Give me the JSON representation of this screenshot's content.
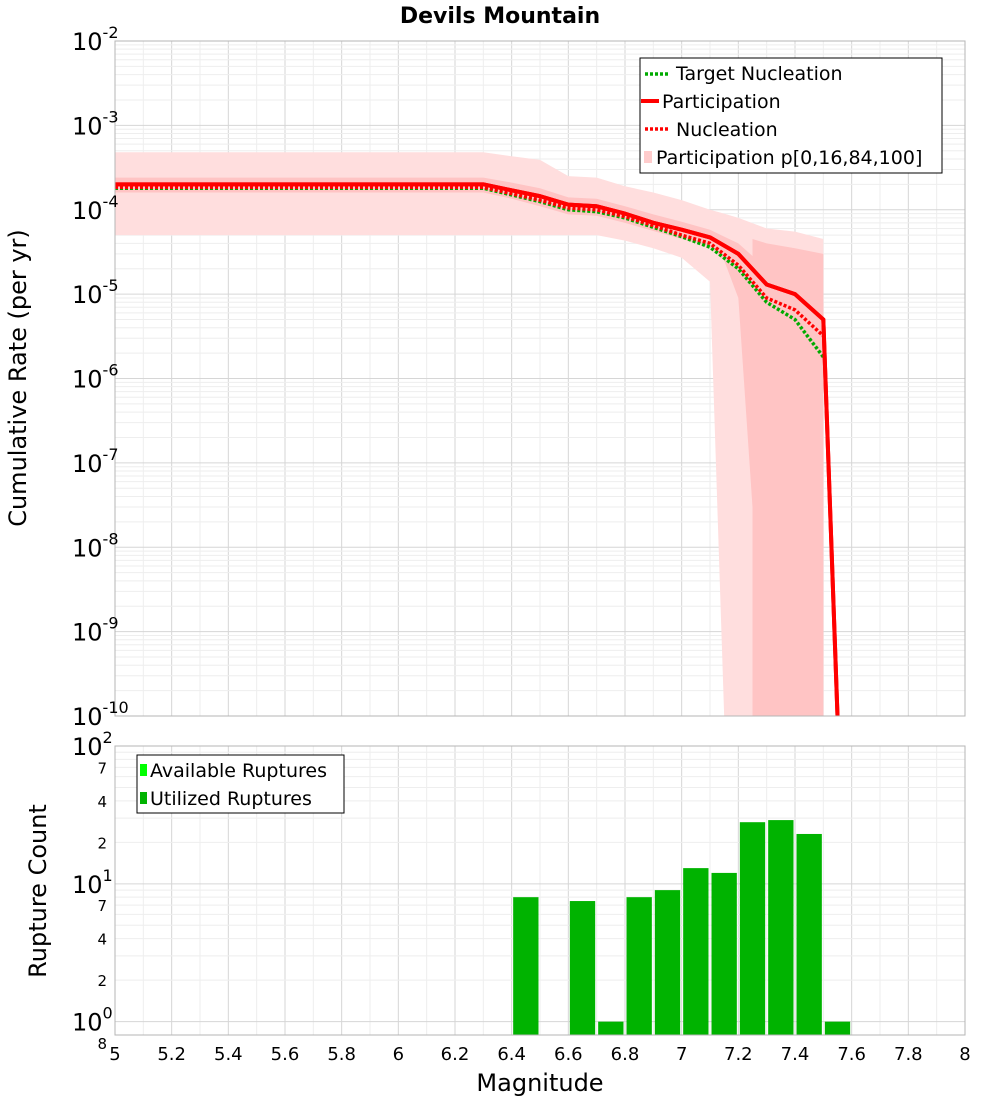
{
  "chart_data": [
    {
      "type": "line",
      "title": "Devils Mountain",
      "xlabel": "",
      "ylabel": "Cumulative Rate (per yr)",
      "xlim": [
        5,
        8
      ],
      "ylim": [
        1e-10,
        0.01
      ],
      "y_scale": "log",
      "grid": true,
      "legend_position": "top-right",
      "y_ticks": [
        {
          "base": "10",
          "exp": "-2"
        },
        {
          "base": "10",
          "exp": "-3"
        },
        {
          "base": "10",
          "exp": "-4"
        },
        {
          "base": "10",
          "exp": "-5"
        },
        {
          "base": "10",
          "exp": "-6"
        },
        {
          "base": "10",
          "exp": "-7"
        },
        {
          "base": "10",
          "exp": "-8"
        },
        {
          "base": "10",
          "exp": "-9"
        },
        {
          "base": "10",
          "exp": "-10"
        }
      ],
      "y_tick_values": [
        -2,
        -3,
        -4,
        -5,
        -6,
        -7,
        -8,
        -9,
        -10
      ],
      "x": [
        5.0,
        6.3,
        6.4,
        6.5,
        6.6,
        6.7,
        6.8,
        6.9,
        7.0,
        7.1,
        7.2,
        7.3,
        7.4,
        7.5
      ],
      "series": [
        {
          "name": "Target Nucleation",
          "color": "#00aa00",
          "style": "dotted",
          "x": [
            5.0,
            6.3,
            6.4,
            6.5,
            6.6,
            6.7,
            6.8,
            6.9,
            7.0,
            7.1,
            7.2,
            7.3,
            7.4,
            7.5
          ],
          "values": [
            0.00018,
            0.00018,
            0.00015,
            0.000125,
            0.0001,
            9.5e-05,
            8e-05,
            6.2e-05,
            4.8e-05,
            3.6e-05,
            2e-05,
            8e-06,
            5e-06,
            1.8e-06
          ]
        },
        {
          "name": "Participation",
          "color": "#ff0000",
          "style": "solid",
          "x": [
            5.0,
            6.3,
            6.4,
            6.5,
            6.6,
            6.7,
            6.8,
            6.9,
            7.0,
            7.1,
            7.2,
            7.3,
            7.4,
            7.5,
            7.55
          ],
          "values": [
            0.0002,
            0.0002,
            0.00017,
            0.000145,
            0.000115,
            0.00011,
            9e-05,
            7e-05,
            5.8e-05,
            4.7e-05,
            3e-05,
            1.3e-05,
            1e-05,
            5e-06,
            1e-10
          ]
        },
        {
          "name": "Nucleation",
          "color": "#ff0000",
          "style": "dotted",
          "x": [
            5.0,
            6.3,
            6.4,
            6.5,
            6.6,
            6.7,
            6.8,
            6.9,
            7.0,
            7.1,
            7.2,
            7.3,
            7.4,
            7.5
          ],
          "values": [
            0.000185,
            0.000185,
            0.000155,
            0.00013,
            0.000105,
            0.0001,
            8.3e-05,
            6.5e-05,
            5e-05,
            4e-05,
            2.2e-05,
            9e-06,
            6.5e-06,
            3.2e-06
          ]
        }
      ],
      "bands": [
        {
          "name": "Participation p[0,16,84,100]",
          "color": "#ffb3b3",
          "x": [
            5.0,
            6.3,
            6.4,
            6.5,
            6.6,
            6.7,
            6.8,
            6.9,
            7.0,
            7.1,
            7.15,
            7.2,
            7.3,
            7.4,
            7.5
          ],
          "outer_upper": [
            0.00048,
            0.00048,
            0.00043,
            0.00039,
            0.00025,
            0.00024,
            0.00019,
            0.00016,
            0.00013,
            0.0001,
            9e-05,
            8e-05,
            6e-05,
            5.5e-05,
            4.5e-05
          ],
          "outer_lower": [
            5e-05,
            5e-05,
            5e-05,
            5e-05,
            5e-05,
            5e-05,
            4.3e-05,
            3.5e-05,
            2.7e-05,
            1.4e-05,
            1e-10,
            1e-10,
            1e-10,
            1e-10,
            1e-10
          ],
          "inner_upper": [
            0.00024,
            0.00024,
            0.00021,
            0.00018,
            0.00014,
            0.000135,
            0.00011,
            8.8e-05,
            7.2e-05,
            5.8e-05,
            4.8e-05,
            4e-05,
            2e-05,
            1.8e-05,
            8e-06
          ],
          "inner_lower": [
            0.00016,
            0.00016,
            0.000135,
            0.00011,
            8.8e-05,
            8.5e-05,
            7e-05,
            5.6e-05,
            4.5e-05,
            3.6e-05,
            2.5e-05,
            9e-06,
            1e-10,
            1e-10,
            1e-10
          ],
          "outer_band_end_x": 7.25
        }
      ]
    },
    {
      "type": "bar",
      "title": "",
      "xlabel": "Magnitude",
      "ylabel": "Rupture Count",
      "xlim": [
        5,
        8
      ],
      "ylim": [
        0.8,
        100
      ],
      "y_scale": "log",
      "grid": true,
      "legend_position": "top-left",
      "x_ticks": [
        "5",
        "5.2",
        "5.4",
        "5.6",
        "5.8",
        "6",
        "6.2",
        "6.4",
        "6.6",
        "6.8",
        "7",
        "7.2",
        "7.4",
        "7.6",
        "7.8",
        "8"
      ],
      "y_ticks": [
        {
          "value": 100,
          "base": "10",
          "exp": "2"
        },
        {
          "value": 10,
          "base": "10",
          "exp": "1"
        },
        {
          "value": 1,
          "base": "10",
          "exp": "0"
        }
      ],
      "y_minor_ticks": [
        {
          "value": 70,
          "label": "7"
        },
        {
          "value": 40,
          "label": "4"
        },
        {
          "value": 20,
          "label": "2"
        },
        {
          "value": 7,
          "label": "7"
        },
        {
          "value": 4,
          "label": "4"
        },
        {
          "value": 2,
          "label": "2"
        },
        {
          "value": 0.8,
          "label": "8"
        }
      ],
      "x": [
        6.45,
        6.65,
        6.75,
        6.85,
        6.95,
        7.05,
        7.15,
        7.25,
        7.35,
        7.45,
        7.55
      ],
      "series": [
        {
          "name": "Available Ruptures",
          "color": "#00ff00",
          "values": [
            null,
            null,
            null,
            null,
            null,
            null,
            null,
            null,
            null,
            null,
            null
          ]
        },
        {
          "name": "Utilized Ruptures",
          "color": "#00b300",
          "values": [
            8,
            7.5,
            1,
            8,
            9,
            13,
            12,
            28,
            29,
            23,
            1
          ]
        }
      ]
    }
  ]
}
